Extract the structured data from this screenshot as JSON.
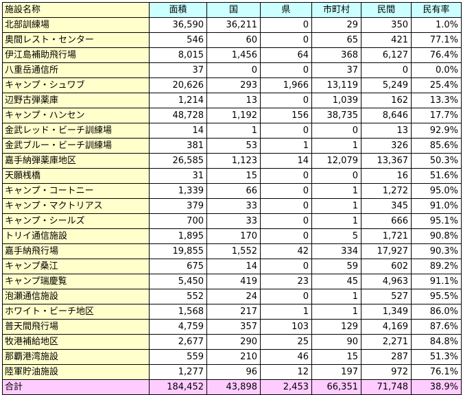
{
  "headers": [
    "施設名称",
    "面積",
    "国",
    "県",
    "市町村",
    "民間",
    "民有率"
  ],
  "rows": [
    [
      "北部訓練場",
      "36,590",
      "36,211",
      "0",
      "29",
      "350",
      "1.0%"
    ],
    [
      "奥間レスト・センター",
      "546",
      "60",
      "0",
      "65",
      "421",
      "77.1%"
    ],
    [
      "伊江島補助飛行場",
      "8,015",
      "1,456",
      "64",
      "368",
      "6,127",
      "76.4%"
    ],
    [
      "八重岳通信所",
      "37",
      "0",
      "0",
      "37",
      "0",
      "0.0%"
    ],
    [
      "キャンプ・シュワブ",
      "20,626",
      "293",
      "1,966",
      "13,119",
      "5,249",
      "25.4%"
    ],
    [
      "辺野古弾薬庫",
      "1,214",
      "13",
      "0",
      "1,039",
      "162",
      "13.3%"
    ],
    [
      "キャンプ・ハンセン",
      "48,728",
      "1,192",
      "156",
      "38,735",
      "8,646",
      "17.7%"
    ],
    [
      "金武レッド・ビーチ訓練場",
      "14",
      "1",
      "0",
      "0",
      "13",
      "92.9%"
    ],
    [
      "金武ブルー・ビーチ訓練場",
      "381",
      "53",
      "1",
      "1",
      "326",
      "85.6%"
    ],
    [
      "嘉手納弾薬庫地区",
      "26,585",
      "1,123",
      "14",
      "12,079",
      "13,367",
      "50.3%"
    ],
    [
      "天願桟橋",
      "31",
      "15",
      "0",
      "0",
      "16",
      "51.6%"
    ],
    [
      "キャンプ・コートニー",
      "1,339",
      "66",
      "0",
      "1",
      "1,272",
      "95.0%"
    ],
    [
      "キャンプ・マクトリアス",
      "379",
      "33",
      "0",
      "1",
      "345",
      "91.0%"
    ],
    [
      "キャンプ・シールズ",
      "700",
      "33",
      "0",
      "1",
      "666",
      "95.1%"
    ],
    [
      "トリイ通信施設",
      "1,895",
      "170",
      "0",
      "5",
      "1,721",
      "90.8%"
    ],
    [
      "嘉手納飛行場",
      "19,855",
      "1,552",
      "42",
      "334",
      "17,927",
      "90.3%"
    ],
    [
      "キャンプ桑江",
      "675",
      "14",
      "0",
      "59",
      "602",
      "89.2%"
    ],
    [
      "キャンプ瑞慶覧",
      "5,450",
      "419",
      "23",
      "45",
      "4,963",
      "91.1%"
    ],
    [
      "泡瀬通信施設",
      "552",
      "24",
      "0",
      "1",
      "527",
      "95.5%"
    ],
    [
      "ホワイト・ビーチ地区",
      "1,568",
      "217",
      "1",
      "1",
      "1,349",
      "86.0%"
    ],
    [
      "普天間飛行場",
      "4,759",
      "357",
      "103",
      "129",
      "4,169",
      "87.6%"
    ],
    [
      "牧港補給地区",
      "2,677",
      "290",
      "25",
      "90",
      "2,271",
      "84.8%"
    ],
    [
      "那覇港湾施設",
      "559",
      "210",
      "46",
      "15",
      "287",
      "51.3%"
    ],
    [
      "陸軍貯油施設",
      "1,277",
      "96",
      "12",
      "197",
      "972",
      "76.1%"
    ]
  ],
  "total": [
    "合計",
    "184,452",
    "43,898",
    "2,453",
    "66,351",
    "71,748",
    "38.9%"
  ]
}
